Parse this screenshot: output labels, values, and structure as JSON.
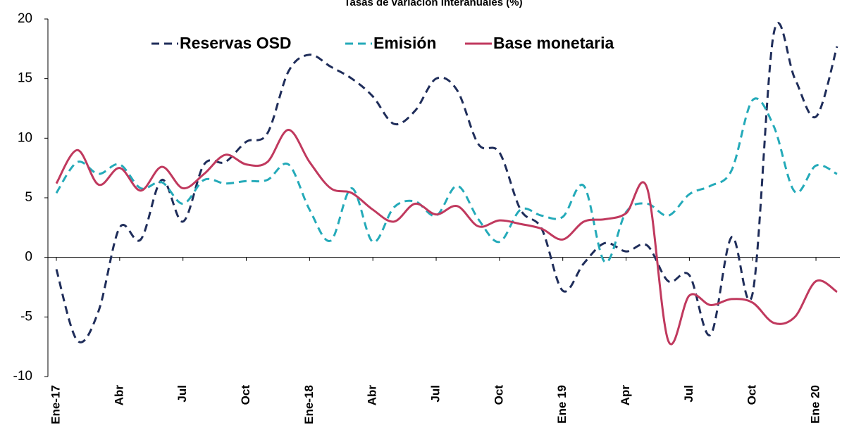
{
  "chart_data": {
    "type": "line",
    "title": "Tasas de variación interanuales (%)",
    "categories": [
      "Ene-17",
      null,
      null,
      "Abr",
      null,
      null,
      "Jul",
      null,
      null,
      "Oct",
      null,
      null,
      "Ene-18",
      null,
      null,
      "Abr",
      null,
      null,
      "Jul",
      null,
      null,
      "Oct",
      null,
      null,
      "Ene 19",
      null,
      null,
      "Apr",
      null,
      null,
      "Jul",
      null,
      null,
      "Oct",
      null,
      null,
      "Ene 20",
      null
    ],
    "series": [
      {
        "name": "Reservas OSD",
        "color": "#1f2d5a",
        "dash": true,
        "values": [
          -1.0,
          -7.0,
          -4.5,
          2.5,
          1.5,
          6.5,
          3.0,
          7.8,
          8.0,
          9.7,
          10.4,
          15.6,
          17.0,
          16.0,
          15.0,
          13.5,
          11.2,
          12.3,
          15.0,
          14.0,
          9.5,
          8.8,
          4.0,
          2.4,
          -2.8,
          -0.5,
          1.2,
          0.5,
          1.0,
          -2.0,
          -1.5,
          -6.5,
          1.7,
          -3.0,
          18.8,
          15.0,
          11.8,
          17.7
        ]
      },
      {
        "name": "Emisión",
        "color": "#24aab9",
        "dash": true,
        "values": [
          5.4,
          8.0,
          7.0,
          7.8,
          5.8,
          6.3,
          4.5,
          6.5,
          6.2,
          6.4,
          6.5,
          7.8,
          4.0,
          1.4,
          5.8,
          1.3,
          4.2,
          4.7,
          3.5,
          6.0,
          3.2,
          1.3,
          4.0,
          3.5,
          3.4,
          6.0,
          -0.4,
          3.8,
          4.5,
          3.5,
          5.3,
          6.0,
          7.3,
          13.2,
          11.0,
          5.5,
          7.7,
          7.0
        ]
      },
      {
        "name": "Base monetaria",
        "color": "#c0395e",
        "dash": false,
        "values": [
          6.2,
          9.0,
          6.1,
          7.5,
          5.6,
          7.6,
          5.8,
          7.0,
          8.6,
          7.8,
          8.0,
          10.7,
          8.0,
          5.8,
          5.4,
          4.0,
          3.0,
          4.5,
          3.6,
          4.3,
          2.6,
          3.1,
          2.8,
          2.4,
          1.5,
          3.0,
          3.2,
          3.7,
          5.8,
          -7.0,
          -3.2,
          -4.0,
          -3.5,
          -3.8,
          -5.5,
          -5.0,
          -2.0,
          -2.9
        ]
      }
    ],
    "ylim": [
      -10,
      20
    ],
    "yticks": [
      -10,
      -5,
      0,
      5,
      10,
      15,
      20
    ]
  }
}
